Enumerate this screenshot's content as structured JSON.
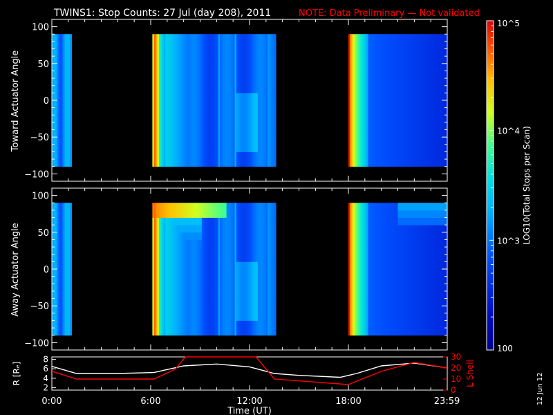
{
  "header": {
    "title": "TWINS1: Stop Counts: 27 Jul (day 208), 2011",
    "note": "NOTE: Data Preliminary — Not validated",
    "title_color": "#ffffff",
    "note_color": "#ff0000"
  },
  "side_stamp": "12 Jun 12",
  "chart_data": [
    {
      "type": "heatmap",
      "ylabel": "Toward Actuator Angle",
      "ylim": [
        -110,
        110
      ],
      "yticks": [
        "100",
        "50",
        "0",
        "−50",
        "−100"
      ],
      "ytick_values": [
        100,
        50,
        0,
        -50,
        -100
      ],
      "xlim_hours": [
        0,
        24
      ],
      "angle_range": [
        -90,
        90
      ],
      "data_intervals_hours": [
        [
          0.0,
          1.2
        ],
        [
          6.1,
          13.6
        ],
        [
          18.0,
          24.0
        ]
      ],
      "colorscale": "log10 rainbow (blue=100, cyan≈1000, yellow/red→100000)"
    },
    {
      "type": "heatmap",
      "ylabel": "Away Actuator Angle",
      "ylim": [
        -110,
        110
      ],
      "yticks": [
        "100",
        "50",
        "0",
        "−50",
        "−100"
      ],
      "ytick_values": [
        100,
        50,
        0,
        -50,
        -100
      ],
      "xlim_hours": [
        0,
        24
      ],
      "angle_range": [
        -90,
        90
      ],
      "data_intervals_hours": [
        [
          0.0,
          1.2
        ],
        [
          6.1,
          13.6
        ],
        [
          18.0,
          24.0
        ]
      ],
      "colorscale": "log10 rainbow (blue=100, cyan≈1000, yellow/red→100000)"
    },
    {
      "type": "line",
      "xlabel": "Time (UT)",
      "xticks": [
        "0:00",
        "6:00",
        "12:00",
        "18:00",
        "23:59"
      ],
      "xtick_hours": [
        0,
        6,
        12,
        18,
        23.98
      ],
      "ylabel_left": "R [Rₑ]",
      "yticks_left": [
        "8",
        "6",
        "4",
        "2"
      ],
      "ylim_left": [
        1.5,
        8.5
      ],
      "ylabel_right": "L Shell",
      "yticks_right": [
        "30",
        "20",
        "10",
        "0"
      ],
      "ylim_right": [
        0,
        30
      ],
      "series": [
        {
          "axis": "left",
          "color": "#ffffff",
          "x": [
            0,
            1.5,
            4,
            6.2,
            8,
            10,
            12,
            13.5,
            15,
            17.5,
            18.5,
            20,
            22,
            23.98
          ],
          "y": [
            6.5,
            5.0,
            5.0,
            5.2,
            6.6,
            7.0,
            6.4,
            5.0,
            4.6,
            4.2,
            5.0,
            6.6,
            7.2,
            6.2
          ]
        },
        {
          "axis": "right",
          "color": "#ff0000",
          "x": [
            0,
            1.5,
            6.2,
            7.5,
            8.1,
            11.8,
            12.4,
            13.5,
            18.0,
            20,
            22,
            23.98
          ],
          "y": [
            17,
            10,
            10,
            19,
            30,
            30,
            30,
            10,
            5,
            17,
            25,
            20
          ]
        }
      ]
    }
  ],
  "colorbar": {
    "label": "LOG10(Total Stops per Scan)",
    "ticks": [
      {
        "value": 100000,
        "label": "10^5"
      },
      {
        "value": 10000,
        "label": "10^4"
      },
      {
        "value": 1000,
        "label": "10^3"
      },
      {
        "value": 100,
        "label": "100"
      }
    ],
    "range_log": [
      2,
      5
    ]
  }
}
